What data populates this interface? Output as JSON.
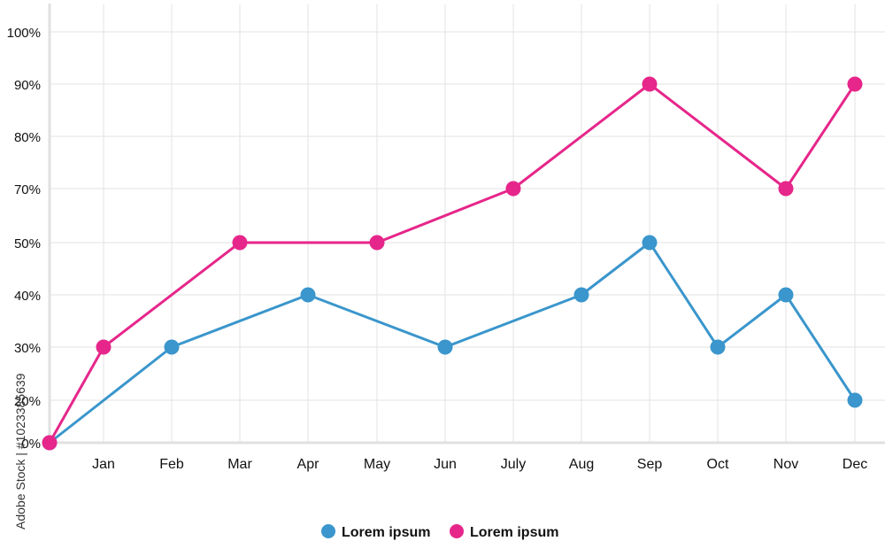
{
  "chart_data": {
    "type": "line",
    "categories": [
      "Jan",
      "Feb",
      "Mar",
      "Apr",
      "May",
      "Jun",
      "July",
      "Aug",
      "Sep",
      "Oct",
      "Nov",
      "Dec"
    ],
    "y_ticks": [
      "0%",
      "20%",
      "30%",
      "40%",
      "50%",
      "70%",
      "80%",
      "90%",
      "100%"
    ],
    "origin_value": 0,
    "series": [
      {
        "name": "Lorem ipsum",
        "color": "#3a96cc",
        "values": [
          null,
          30,
          null,
          40,
          null,
          30,
          null,
          40,
          50,
          30,
          40,
          20
        ]
      },
      {
        "name": "Lorem ipsum",
        "color": "#e6268a",
        "values": [
          30,
          null,
          50,
          null,
          50,
          null,
          70,
          null,
          90,
          null,
          70,
          90
        ]
      }
    ],
    "grid": true,
    "legend_position": "bottom-center",
    "xlabel": "",
    "ylabel": "",
    "title": ""
  },
  "watermark": "Adobe Stock | #1023385639"
}
